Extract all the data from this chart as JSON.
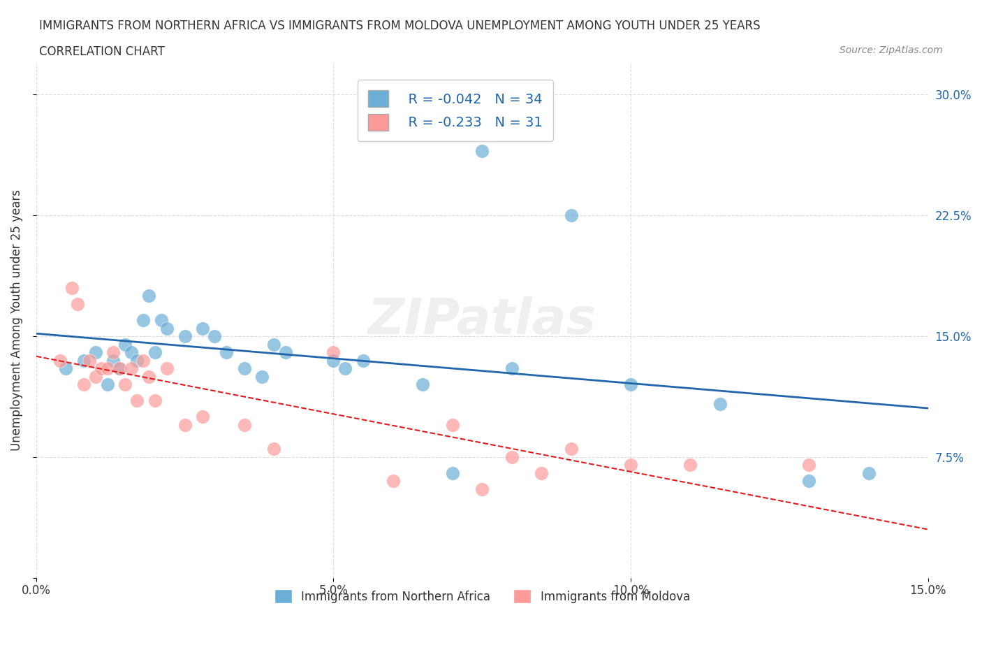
{
  "title_line1": "IMMIGRANTS FROM NORTHERN AFRICA VS IMMIGRANTS FROM MOLDOVA UNEMPLOYMENT AMONG YOUTH UNDER 25 YEARS",
  "title_line2": "CORRELATION CHART",
  "source": "Source: ZipAtlas.com",
  "ylabel": "Unemployment Among Youth under 25 years",
  "xlim": [
    0,
    0.15
  ],
  "ylim": [
    0,
    0.32
  ],
  "xticks": [
    0.0,
    0.05,
    0.1,
    0.15
  ],
  "xtick_labels": [
    "0.0%",
    "5.0%",
    "10.0%",
    "15.0%"
  ],
  "yticks": [
    0.0,
    0.075,
    0.15,
    0.225,
    0.3
  ],
  "ytick_labels_right": [
    "",
    "7.5%",
    "15.0%",
    "22.5%",
    "30.0%"
  ],
  "grid_color": "#cccccc",
  "background_color": "#ffffff",
  "blue_color": "#6baed6",
  "pink_color": "#fb9a99",
  "blue_line_color": "#2166ac",
  "pink_line_color": "#e31a1c",
  "watermark": "ZIPatlas",
  "legend_r1": "R = -0.042",
  "legend_n1": "N = 34",
  "legend_r2": "R = -0.233",
  "legend_n2": "N = 31",
  "legend_label1": "Immigrants from Northern Africa",
  "legend_label2": "Immigrants from Moldova",
  "blue_x": [
    0.005,
    0.008,
    0.01,
    0.012,
    0.013,
    0.014,
    0.015,
    0.016,
    0.017,
    0.018,
    0.019,
    0.02,
    0.021,
    0.022,
    0.025,
    0.028,
    0.03,
    0.032,
    0.035,
    0.038,
    0.04,
    0.042,
    0.05,
    0.052,
    0.055,
    0.065,
    0.07,
    0.075,
    0.08,
    0.09,
    0.1,
    0.115,
    0.13,
    0.14
  ],
  "blue_y": [
    0.13,
    0.135,
    0.14,
    0.12,
    0.135,
    0.13,
    0.145,
    0.14,
    0.135,
    0.16,
    0.175,
    0.14,
    0.16,
    0.155,
    0.15,
    0.155,
    0.15,
    0.14,
    0.13,
    0.125,
    0.145,
    0.14,
    0.135,
    0.13,
    0.135,
    0.12,
    0.065,
    0.265,
    0.13,
    0.225,
    0.12,
    0.108,
    0.06,
    0.065
  ],
  "pink_x": [
    0.004,
    0.006,
    0.007,
    0.008,
    0.009,
    0.01,
    0.011,
    0.012,
    0.013,
    0.014,
    0.015,
    0.016,
    0.017,
    0.018,
    0.019,
    0.02,
    0.022,
    0.025,
    0.028,
    0.035,
    0.04,
    0.05,
    0.06,
    0.07,
    0.075,
    0.08,
    0.085,
    0.09,
    0.1,
    0.11,
    0.13
  ],
  "pink_y": [
    0.135,
    0.18,
    0.17,
    0.12,
    0.135,
    0.125,
    0.13,
    0.13,
    0.14,
    0.13,
    0.12,
    0.13,
    0.11,
    0.135,
    0.125,
    0.11,
    0.13,
    0.095,
    0.1,
    0.095,
    0.08,
    0.14,
    0.06,
    0.095,
    0.055,
    0.075,
    0.065,
    0.08,
    0.07,
    0.07,
    0.07
  ]
}
